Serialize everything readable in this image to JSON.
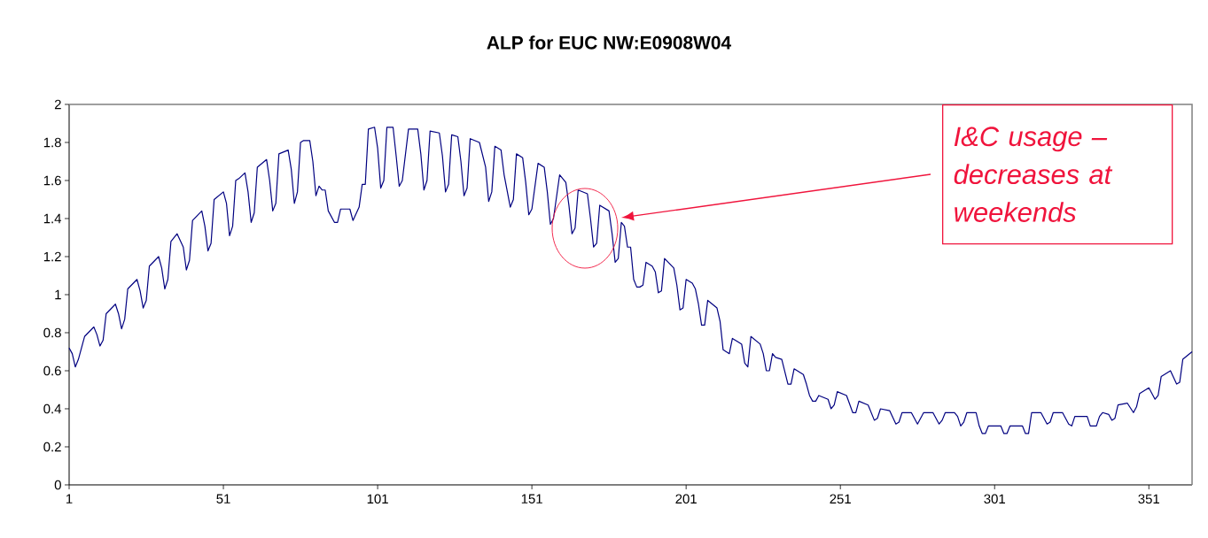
{
  "chart_data": {
    "type": "line",
    "title": "ALP for EUC NW:E0908W04",
    "x": [
      1,
      2,
      3,
      4,
      6,
      9,
      10,
      11,
      12,
      13,
      16,
      17,
      18,
      19,
      20,
      23,
      24,
      25,
      26,
      27,
      30,
      31,
      32,
      33,
      34,
      36,
      38,
      39,
      40,
      41,
      44,
      45,
      46,
      47,
      48,
      51,
      52,
      53,
      54,
      55,
      56,
      58,
      59,
      60,
      61,
      62,
      65,
      66,
      67,
      68,
      69,
      72,
      73,
      74,
      75,
      76,
      77,
      79,
      80,
      81,
      82,
      83,
      84,
      85,
      87,
      88,
      89,
      90,
      92,
      93,
      95,
      96,
      97,
      98,
      100,
      101,
      102,
      103,
      104,
      106,
      107,
      108,
      109,
      111,
      114,
      115,
      116,
      117,
      118,
      121,
      122,
      123,
      124,
      125,
      127,
      128,
      129,
      130,
      131,
      134,
      136,
      137,
      138,
      139,
      141,
      142,
      144,
      145,
      146,
      148,
      149,
      150,
      151,
      153,
      155,
      156,
      157,
      158,
      160,
      162,
      163,
      164,
      165,
      166,
      169,
      170,
      171,
      172,
      173,
      176,
      177,
      178,
      179,
      180,
      181,
      182,
      183,
      184,
      185,
      186,
      187,
      188,
      190,
      191,
      192,
      193,
      194,
      197,
      198,
      199,
      200,
      201,
      203,
      204,
      205,
      206,
      207,
      208,
      211,
      212,
      213,
      214,
      215,
      216,
      218,
      219,
      220,
      221,
      222,
      225,
      226,
      227,
      228,
      229,
      230,
      232,
      234,
      235,
      236,
      239,
      240,
      241,
      242,
      243,
      244,
      247,
      248,
      249,
      250,
      253,
      255,
      256,
      257,
      260,
      262,
      263,
      264,
      267,
      269,
      270,
      271,
      274,
      276,
      278,
      281,
      283,
      284,
      285,
      288,
      289,
      290,
      291,
      292,
      295,
      296,
      297,
      298,
      299,
      303,
      304,
      305,
      306,
      310,
      311,
      312,
      313,
      316,
      318,
      319,
      320,
      323,
      325,
      326,
      327,
      331,
      332,
      334,
      335,
      336,
      338,
      339,
      340,
      341,
      344,
      346,
      347,
      348,
      351,
      353,
      354,
      355,
      358,
      360,
      361,
      362,
      365
    ],
    "values": [
      0.72,
      0.69,
      0.62,
      0.66,
      0.78,
      0.83,
      0.79,
      0.73,
      0.76,
      0.9,
      0.95,
      0.9,
      0.82,
      0.87,
      1.03,
      1.08,
      1.02,
      0.93,
      0.97,
      1.15,
      1.2,
      1.14,
      1.03,
      1.08,
      1.28,
      1.32,
      1.25,
      1.13,
      1.18,
      1.39,
      1.44,
      1.36,
      1.23,
      1.27,
      1.5,
      1.54,
      1.48,
      1.31,
      1.36,
      1.6,
      1.61,
      1.64,
      1.54,
      1.38,
      1.43,
      1.67,
      1.71,
      1.6,
      1.44,
      1.48,
      1.74,
      1.76,
      1.66,
      1.48,
      1.54,
      1.8,
      1.81,
      1.81,
      1.7,
      1.52,
      1.57,
      1.55,
      1.55,
      1.44,
      1.38,
      1.38,
      1.45,
      1.45,
      1.45,
      1.39,
      1.46,
      1.58,
      1.58,
      1.87,
      1.88,
      1.77,
      1.56,
      1.6,
      1.88,
      1.88,
      1.73,
      1.57,
      1.6,
      1.87,
      1.87,
      1.74,
      1.55,
      1.6,
      1.86,
      1.85,
      1.73,
      1.54,
      1.58,
      1.84,
      1.83,
      1.7,
      1.52,
      1.56,
      1.82,
      1.8,
      1.67,
      1.49,
      1.54,
      1.78,
      1.76,
      1.63,
      1.46,
      1.5,
      1.74,
      1.72,
      1.59,
      1.42,
      1.45,
      1.69,
      1.67,
      1.54,
      1.37,
      1.4,
      1.63,
      1.59,
      1.47,
      1.32,
      1.35,
      1.55,
      1.53,
      1.4,
      1.25,
      1.27,
      1.47,
      1.44,
      1.32,
      1.17,
      1.19,
      1.38,
      1.36,
      1.25,
      1.25,
      1.08,
      1.04,
      1.04,
      1.05,
      1.17,
      1.15,
      1.12,
      1.01,
      1.02,
      1.19,
      1.14,
      1.05,
      0.92,
      0.93,
      1.08,
      1.06,
      1.03,
      0.95,
      0.84,
      0.84,
      0.97,
      0.93,
      0.86,
      0.71,
      0.7,
      0.69,
      0.77,
      0.75,
      0.74,
      0.64,
      0.62,
      0.78,
      0.74,
      0.69,
      0.6,
      0.6,
      0.69,
      0.67,
      0.66,
      0.53,
      0.53,
      0.61,
      0.58,
      0.53,
      0.47,
      0.44,
      0.44,
      0.47,
      0.45,
      0.4,
      0.42,
      0.49,
      0.47,
      0.38,
      0.38,
      0.44,
      0.42,
      0.34,
      0.35,
      0.4,
      0.39,
      0.32,
      0.33,
      0.38,
      0.38,
      0.32,
      0.38,
      0.38,
      0.32,
      0.34,
      0.38,
      0.38,
      0.36,
      0.31,
      0.33,
      0.38,
      0.38,
      0.31,
      0.27,
      0.27,
      0.31,
      0.31,
      0.27,
      0.27,
      0.31,
      0.31,
      0.27,
      0.27,
      0.38,
      0.38,
      0.32,
      0.33,
      0.38,
      0.38,
      0.32,
      0.31,
      0.36,
      0.36,
      0.31,
      0.31,
      0.36,
      0.38,
      0.37,
      0.34,
      0.35,
      0.42,
      0.43,
      0.38,
      0.41,
      0.48,
      0.51,
      0.45,
      0.47,
      0.57,
      0.6,
      0.53,
      0.54,
      0.66,
      0.7
    ],
    "color": "#000080",
    "marker": "none",
    "line_style": "solid",
    "grid": false,
    "xlim": [
      1,
      365
    ],
    "xticks": [
      1,
      51,
      101,
      151,
      201,
      251,
      301,
      351
    ],
    "ylim": [
      0,
      2
    ],
    "yticks": [
      0,
      0.2,
      0.4,
      0.6,
      0.8,
      1,
      1.2,
      1.4,
      1.6,
      1.8,
      2
    ],
    "annotations": [
      "I&C usage – decreases at weekends"
    ]
  }
}
